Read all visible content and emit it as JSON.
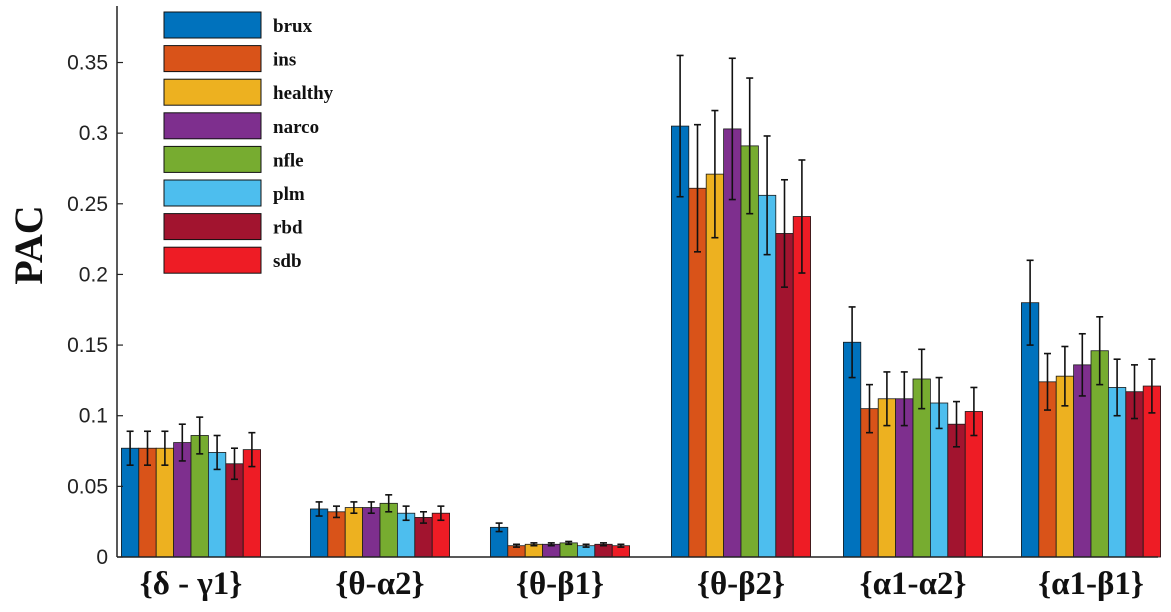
{
  "chart_data": {
    "type": "bar",
    "title": "",
    "xlabel": "",
    "ylabel": "PAC",
    "ylim": [
      0,
      0.39
    ],
    "yticks": [
      0,
      0.05,
      0.1,
      0.15,
      0.2,
      0.25,
      0.3,
      0.35
    ],
    "ytick_labels": [
      "0",
      "0.05",
      "0.1",
      "0.15",
      "0.2",
      "0.25",
      "0.3",
      "0.35"
    ],
    "grid": false,
    "legend_position": "top-left",
    "categories": [
      "{δ - γ1}",
      "{θ-α2}",
      "{θ-β1}",
      "{θ-β2}",
      "{α1-α2}",
      "{α1-β1}"
    ],
    "series": [
      {
        "name": "brux",
        "color": "#0072BD",
        "values": [
          0.077,
          0.034,
          0.021,
          0.305,
          0.152,
          0.18
        ],
        "errors": [
          0.012,
          0.005,
          0.003,
          0.05,
          0.025,
          0.03
        ]
      },
      {
        "name": "ins",
        "color": "#D95319",
        "values": [
          0.077,
          0.032,
          0.008,
          0.261,
          0.105,
          0.124
        ],
        "errors": [
          0.012,
          0.004,
          0.001,
          0.045,
          0.017,
          0.02
        ]
      },
      {
        "name": "healthy",
        "color": "#EDB120",
        "values": [
          0.077,
          0.035,
          0.009,
          0.271,
          0.112,
          0.128
        ],
        "errors": [
          0.012,
          0.004,
          0.001,
          0.045,
          0.019,
          0.021
        ]
      },
      {
        "name": "narco",
        "color": "#7E2F8E",
        "values": [
          0.081,
          0.035,
          0.009,
          0.303,
          0.112,
          0.136
        ],
        "errors": [
          0.013,
          0.004,
          0.001,
          0.05,
          0.019,
          0.022
        ]
      },
      {
        "name": "nfle",
        "color": "#77AC30",
        "values": [
          0.086,
          0.038,
          0.01,
          0.291,
          0.126,
          0.146
        ],
        "errors": [
          0.013,
          0.006,
          0.001,
          0.048,
          0.021,
          0.024
        ]
      },
      {
        "name": "plm",
        "color": "#4DBEEE",
        "values": [
          0.074,
          0.031,
          0.008,
          0.256,
          0.109,
          0.12
        ],
        "errors": [
          0.012,
          0.005,
          0.001,
          0.042,
          0.018,
          0.02
        ]
      },
      {
        "name": "rbd",
        "color": "#A2142F",
        "values": [
          0.066,
          0.028,
          0.009,
          0.229,
          0.094,
          0.117
        ],
        "errors": [
          0.011,
          0.004,
          0.001,
          0.038,
          0.016,
          0.019
        ]
      },
      {
        "name": "sdb",
        "color": "#EE1C25",
        "values": [
          0.076,
          0.031,
          0.008,
          0.241,
          0.103,
          0.121
        ],
        "errors": [
          0.012,
          0.005,
          0.001,
          0.04,
          0.017,
          0.019
        ]
      }
    ]
  }
}
